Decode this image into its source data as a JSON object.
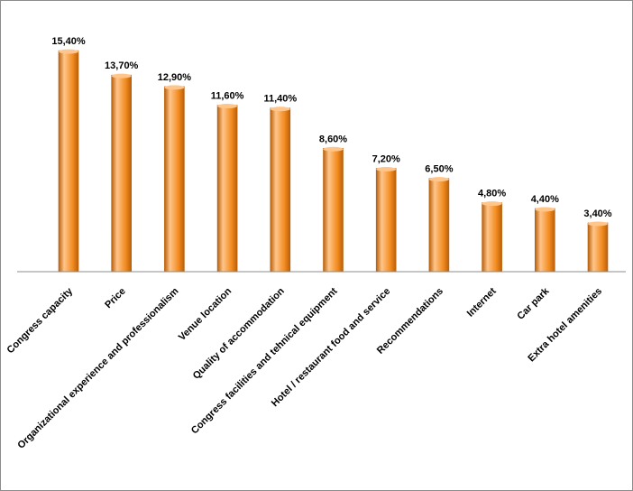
{
  "chart_data": {
    "type": "bar",
    "title": "",
    "xlabel": "",
    "ylabel": "",
    "ylim": [
      0,
      16
    ],
    "grid": false,
    "legend": "none",
    "categories": [
      "Congress capacity",
      "Price",
      "Organizational experience and professionalism",
      "Venue location",
      "Quality of accommodation",
      "Congress facilities and tehnical equipment",
      "Hotel / restaurant food and service",
      "Recommendations",
      "Internet",
      "Car park",
      "Extra hotel amenities"
    ],
    "values": [
      15.4,
      13.7,
      12.9,
      11.6,
      11.4,
      8.6,
      7.2,
      6.5,
      4.8,
      4.4,
      3.4
    ],
    "data_labels": [
      "15,40%",
      "13,70%",
      "12,90%",
      "11,60%",
      "11,40%",
      "8,60%",
      "7,20%",
      "6,50%",
      "4,80%",
      "4,40%",
      "3,40%"
    ],
    "colors": {
      "bar_light": "#ffc58a",
      "bar_main": "#f28a1e",
      "bar_dark": "#b85f0b",
      "axis": "#8c8c8c"
    }
  }
}
